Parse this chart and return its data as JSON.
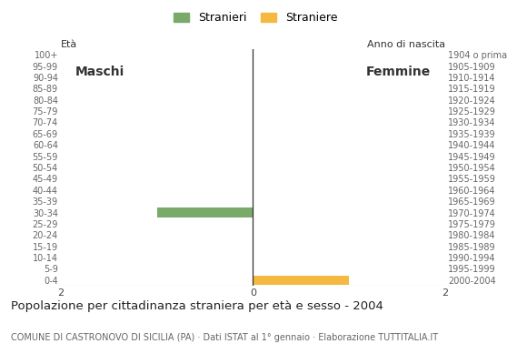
{
  "age_groups": [
    "100+",
    "95-99",
    "90-94",
    "85-89",
    "80-84",
    "75-79",
    "70-74",
    "65-69",
    "60-64",
    "55-59",
    "50-54",
    "45-49",
    "40-44",
    "35-39",
    "30-34",
    "25-29",
    "20-24",
    "15-19",
    "10-14",
    "5-9",
    "0-4"
  ],
  "birth_years": [
    "1904 o prima",
    "1905-1909",
    "1910-1914",
    "1915-1919",
    "1920-1924",
    "1925-1929",
    "1930-1934",
    "1935-1939",
    "1940-1944",
    "1945-1949",
    "1950-1954",
    "1955-1959",
    "1960-1964",
    "1965-1969",
    "1970-1974",
    "1975-1979",
    "1980-1984",
    "1985-1989",
    "1990-1994",
    "1995-1999",
    "2000-2004"
  ],
  "males": [
    0,
    0,
    0,
    0,
    0,
    0,
    0,
    0,
    0,
    0,
    0,
    0,
    0,
    0,
    1,
    0,
    0,
    0,
    0,
    0,
    0
  ],
  "females": [
    0,
    0,
    0,
    0,
    0,
    0,
    0,
    0,
    0,
    0,
    0,
    0,
    0,
    0,
    0,
    0,
    0,
    0,
    0,
    0,
    1
  ],
  "male_color": "#7aaa6a",
  "female_color": "#f5b942",
  "xlim": 2,
  "legend_male": "Stranieri",
  "legend_female": "Straniere",
  "title": "Popolazione per cittadinanza straniera per età e sesso - 2004",
  "subtitle": "COMUNE DI CASTRONOVO DI SICILIA (PA) · Dati ISTAT al 1° gennaio · Elaborazione TUTTITALIA.IT",
  "label_eta": "Età",
  "label_anno": "Anno di nascita",
  "label_maschi": "Maschi",
  "label_femmine": "Femmine",
  "bg_color": "#ffffff",
  "bar_height": 0.85
}
